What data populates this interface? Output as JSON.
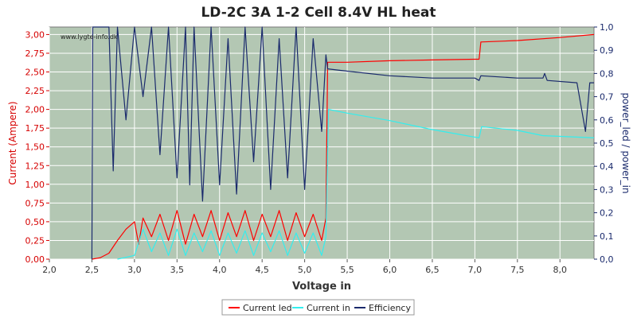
{
  "chart_data": {
    "type": "line",
    "title": "LD-2C 3A 1-2 Cell 8.4V HL heat",
    "watermark": "www.lygte-info.dk",
    "xlabel": "Voltage in",
    "ylabel_left": "Current (Ampere)",
    "ylabel_right": "power_led / power_in",
    "xlim": [
      2.0,
      8.4
    ],
    "ylim_left": [
      0,
      3.1
    ],
    "ylim_right": [
      0,
      1.0
    ],
    "x_ticks": [
      "2,0",
      "2,5",
      "3,0",
      "3,5",
      "4,0",
      "4,5",
      "5,0",
      "5,5",
      "6,0",
      "6,5",
      "7,0",
      "7,5",
      "8,0"
    ],
    "x_tick_values": [
      2.0,
      2.5,
      3.0,
      3.5,
      4.0,
      4.5,
      5.0,
      5.5,
      6.0,
      6.5,
      7.0,
      7.5,
      8.0
    ],
    "y_left_ticks": [
      "0,00",
      "0,25",
      "0,50",
      "0,75",
      "1,00",
      "1,25",
      "1,50",
      "1,75",
      "2,00",
      "2,25",
      "2,50",
      "2,75",
      "3,00"
    ],
    "y_left_tick_values": [
      0,
      0.25,
      0.5,
      0.75,
      1.0,
      1.25,
      1.5,
      1.75,
      2.0,
      2.25,
      2.5,
      2.75,
      3.0
    ],
    "y_right_ticks": [
      "0,0",
      "0,1",
      "0,2",
      "0,3",
      "0,4",
      "0,5",
      "0,6",
      "0,7",
      "0,8",
      "0,9",
      "1,0"
    ],
    "y_right_tick_values": [
      0,
      0.1,
      0.2,
      0.3,
      0.4,
      0.5,
      0.6,
      0.7,
      0.8,
      0.9,
      1.0
    ],
    "grid": true,
    "legend_position": "bottom",
    "series": [
      {
        "name": "Current led",
        "color": "#ff0000",
        "axis": "left",
        "points": [
          [
            2.5,
            0.0
          ],
          [
            2.6,
            0.02
          ],
          [
            2.7,
            0.08
          ],
          [
            2.8,
            0.25
          ],
          [
            2.9,
            0.4
          ],
          [
            3.0,
            0.5
          ],
          [
            3.05,
            0.2
          ],
          [
            3.1,
            0.55
          ],
          [
            3.2,
            0.3
          ],
          [
            3.3,
            0.6
          ],
          [
            3.4,
            0.25
          ],
          [
            3.5,
            0.65
          ],
          [
            3.6,
            0.2
          ],
          [
            3.7,
            0.6
          ],
          [
            3.8,
            0.3
          ],
          [
            3.9,
            0.65
          ],
          [
            4.0,
            0.25
          ],
          [
            4.1,
            0.62
          ],
          [
            4.2,
            0.3
          ],
          [
            4.3,
            0.65
          ],
          [
            4.4,
            0.25
          ],
          [
            4.5,
            0.6
          ],
          [
            4.6,
            0.3
          ],
          [
            4.7,
            0.65
          ],
          [
            4.8,
            0.25
          ],
          [
            4.9,
            0.62
          ],
          [
            5.0,
            0.3
          ],
          [
            5.1,
            0.6
          ],
          [
            5.2,
            0.25
          ],
          [
            5.25,
            0.55
          ],
          [
            5.27,
            2.63
          ],
          [
            5.5,
            2.63
          ],
          [
            6.0,
            2.65
          ],
          [
            6.5,
            2.66
          ],
          [
            7.0,
            2.67
          ],
          [
            7.05,
            2.67
          ],
          [
            7.07,
            2.9
          ],
          [
            7.5,
            2.92
          ],
          [
            8.0,
            2.96
          ],
          [
            8.4,
            3.0
          ]
        ]
      },
      {
        "name": "Current in",
        "color": "#33eeee",
        "axis": "left",
        "points": [
          [
            2.8,
            0.0
          ],
          [
            3.0,
            0.05
          ],
          [
            3.1,
            0.4
          ],
          [
            3.2,
            0.1
          ],
          [
            3.3,
            0.35
          ],
          [
            3.4,
            0.05
          ],
          [
            3.5,
            0.4
          ],
          [
            3.6,
            0.05
          ],
          [
            3.7,
            0.35
          ],
          [
            3.8,
            0.1
          ],
          [
            3.9,
            0.38
          ],
          [
            4.0,
            0.05
          ],
          [
            4.1,
            0.35
          ],
          [
            4.2,
            0.08
          ],
          [
            4.3,
            0.38
          ],
          [
            4.4,
            0.05
          ],
          [
            4.5,
            0.35
          ],
          [
            4.6,
            0.1
          ],
          [
            4.7,
            0.38
          ],
          [
            4.8,
            0.05
          ],
          [
            4.9,
            0.35
          ],
          [
            5.0,
            0.08
          ],
          [
            5.1,
            0.35
          ],
          [
            5.2,
            0.05
          ],
          [
            5.25,
            0.3
          ],
          [
            5.28,
            2.0
          ],
          [
            5.5,
            1.95
          ],
          [
            6.0,
            1.85
          ],
          [
            6.5,
            1.73
          ],
          [
            7.0,
            1.63
          ],
          [
            7.05,
            1.62
          ],
          [
            7.08,
            1.77
          ],
          [
            7.5,
            1.72
          ],
          [
            7.8,
            1.65
          ],
          [
            8.0,
            1.64
          ],
          [
            8.4,
            1.62
          ]
        ]
      },
      {
        "name": "Efficiency",
        "color": "#1a2a6c",
        "axis": "right",
        "points": [
          [
            2.5,
            0.0
          ],
          [
            2.51,
            1.0
          ],
          [
            2.7,
            1.0
          ],
          [
            2.75,
            0.38
          ],
          [
            2.8,
            1.0
          ],
          [
            2.9,
            0.6
          ],
          [
            3.0,
            1.0
          ],
          [
            3.1,
            0.7
          ],
          [
            3.2,
            1.0
          ],
          [
            3.3,
            0.45
          ],
          [
            3.4,
            1.0
          ],
          [
            3.5,
            0.35
          ],
          [
            3.6,
            1.0
          ],
          [
            3.65,
            0.32
          ],
          [
            3.7,
            1.0
          ],
          [
            3.8,
            0.25
          ],
          [
            3.9,
            1.0
          ],
          [
            4.0,
            0.32
          ],
          [
            4.1,
            0.95
          ],
          [
            4.2,
            0.28
          ],
          [
            4.3,
            1.0
          ],
          [
            4.4,
            0.42
          ],
          [
            4.5,
            1.0
          ],
          [
            4.6,
            0.3
          ],
          [
            4.7,
            0.95
          ],
          [
            4.8,
            0.35
          ],
          [
            4.9,
            1.0
          ],
          [
            5.0,
            0.3
          ],
          [
            5.1,
            0.95
          ],
          [
            5.2,
            0.55
          ],
          [
            5.25,
            0.88
          ],
          [
            5.27,
            0.82
          ],
          [
            5.5,
            0.81
          ],
          [
            6.0,
            0.79
          ],
          [
            6.5,
            0.78
          ],
          [
            7.0,
            0.78
          ],
          [
            7.05,
            0.77
          ],
          [
            7.07,
            0.79
          ],
          [
            7.5,
            0.78
          ],
          [
            7.8,
            0.78
          ],
          [
            7.82,
            0.8
          ],
          [
            7.85,
            0.77
          ],
          [
            8.2,
            0.76
          ],
          [
            8.3,
            0.55
          ],
          [
            8.35,
            0.76
          ],
          [
            8.4,
            0.76
          ]
        ]
      }
    ]
  }
}
